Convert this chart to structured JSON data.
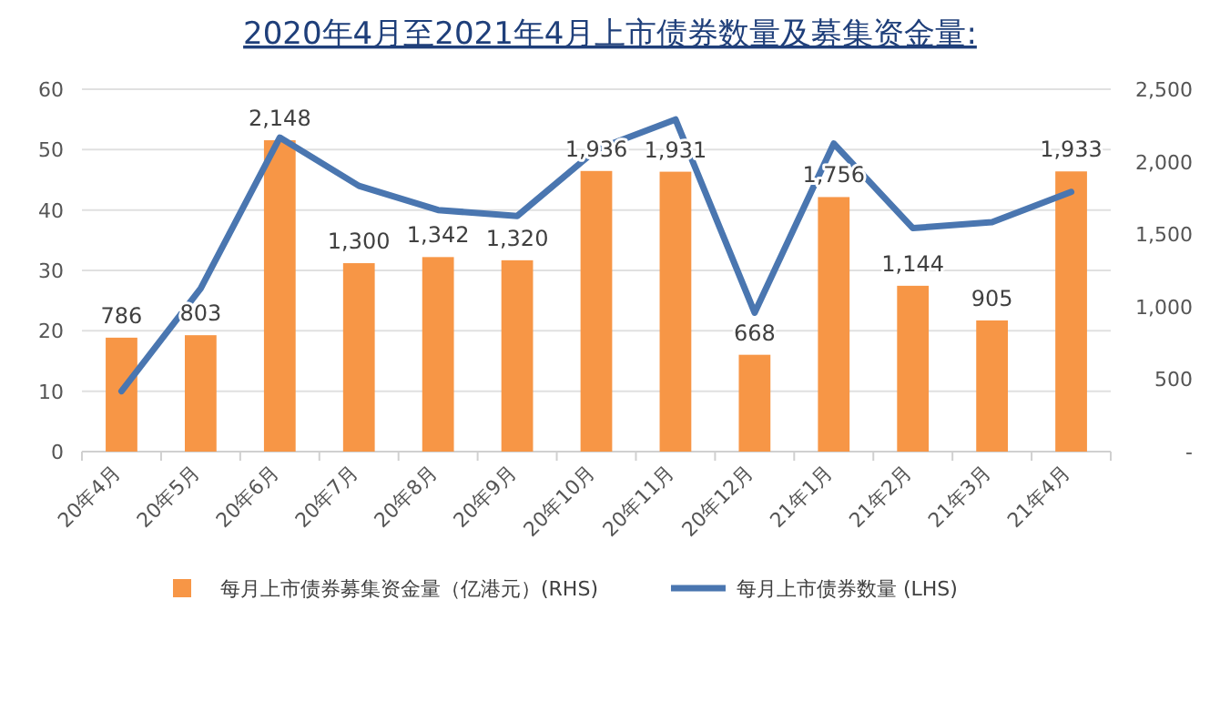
{
  "chart_data": {
    "type": "bar",
    "title": "2020年4月至2021年4月上市债券数量及募集资金量:",
    "categories": [
      "20年4月",
      "20年5月",
      "20年6月",
      "20年7月",
      "20年8月",
      "20年9月",
      "20年10月",
      "20年11月",
      "20年12月",
      "21年1月",
      "21年2月",
      "21年3月",
      "21年4月"
    ],
    "series": [
      {
        "name": "每月上市债券募集资金量（亿港元）(RHS)",
        "axis": "y2",
        "color": "#f79646",
        "values": [
          786,
          803,
          2148,
          1300,
          1342,
          1320,
          1936,
          1931,
          668,
          1756,
          1144,
          905,
          1933
        ],
        "value_labels": [
          "786",
          "803",
          "2,148",
          "1,300",
          "1,342",
          "1,320",
          "1,936",
          "1,931",
          "668",
          "1,756",
          "1,144",
          "905",
          "1,933"
        ]
      },
      {
        "name": "每月上市债券数量 (LHS)",
        "type": "line",
        "color": "#4a76b0",
        "values": [
          10,
          27,
          52,
          44,
          40,
          39,
          50,
          55,
          23,
          51,
          37,
          38,
          43
        ]
      }
    ],
    "ylim": [
      0,
      60
    ],
    "yticks": [
      0,
      10,
      20,
      30,
      40,
      50,
      60
    ],
    "y2lim": [
      0,
      2500
    ],
    "y2ticks": [
      {
        "value": 0,
        "label": "-"
      },
      {
        "value": 500,
        "label": "500"
      },
      {
        "value": 1000,
        "label": "1,000"
      },
      {
        "value": 1500,
        "label": "1,500"
      },
      {
        "value": 2000,
        "label": "2,000"
      },
      {
        "value": 2500,
        "label": "2,500"
      }
    ],
    "grid": "y",
    "legend": "bottom",
    "marker": "none"
  }
}
